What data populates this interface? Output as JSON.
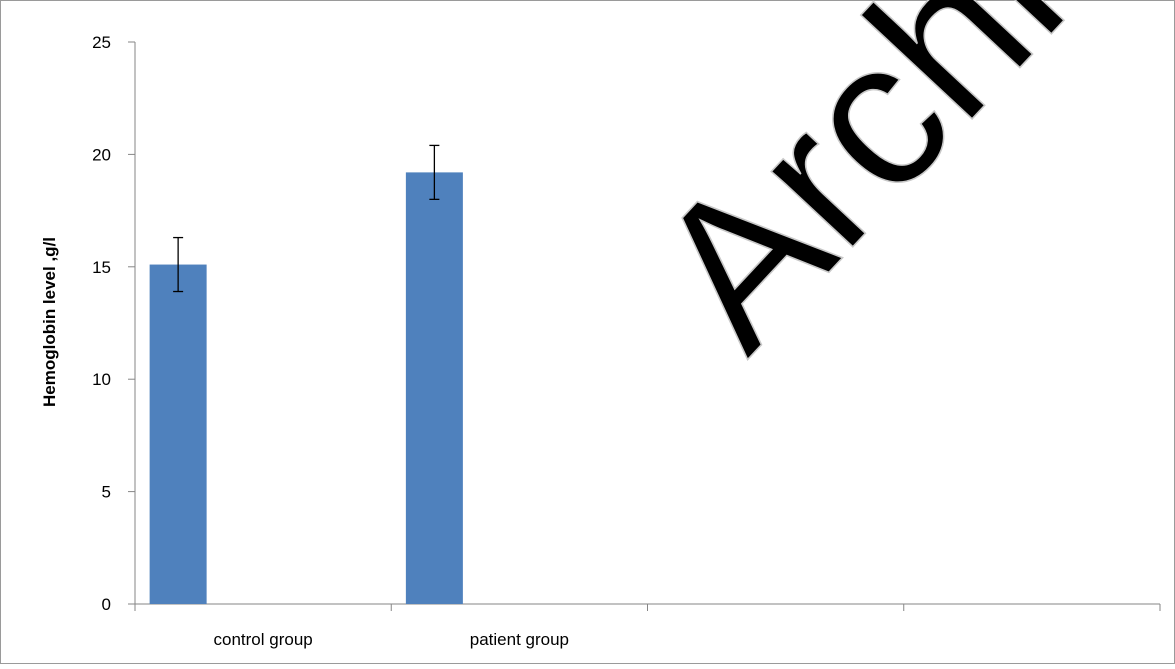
{
  "watermark": "Archive",
  "chart_data": {
    "type": "bar",
    "categories": [
      "control group",
      "patient group",
      "",
      ""
    ],
    "values": [
      15.1,
      19.2,
      null,
      null
    ],
    "errors": [
      1.2,
      1.2,
      null,
      null
    ],
    "ylabel": "Hemoglobin level ,g/l",
    "xlabel": "",
    "ylim": [
      0,
      25
    ],
    "yticks": [
      0,
      5,
      10,
      15,
      20,
      25
    ],
    "grid": false,
    "bar_color": "#4F81BD"
  }
}
